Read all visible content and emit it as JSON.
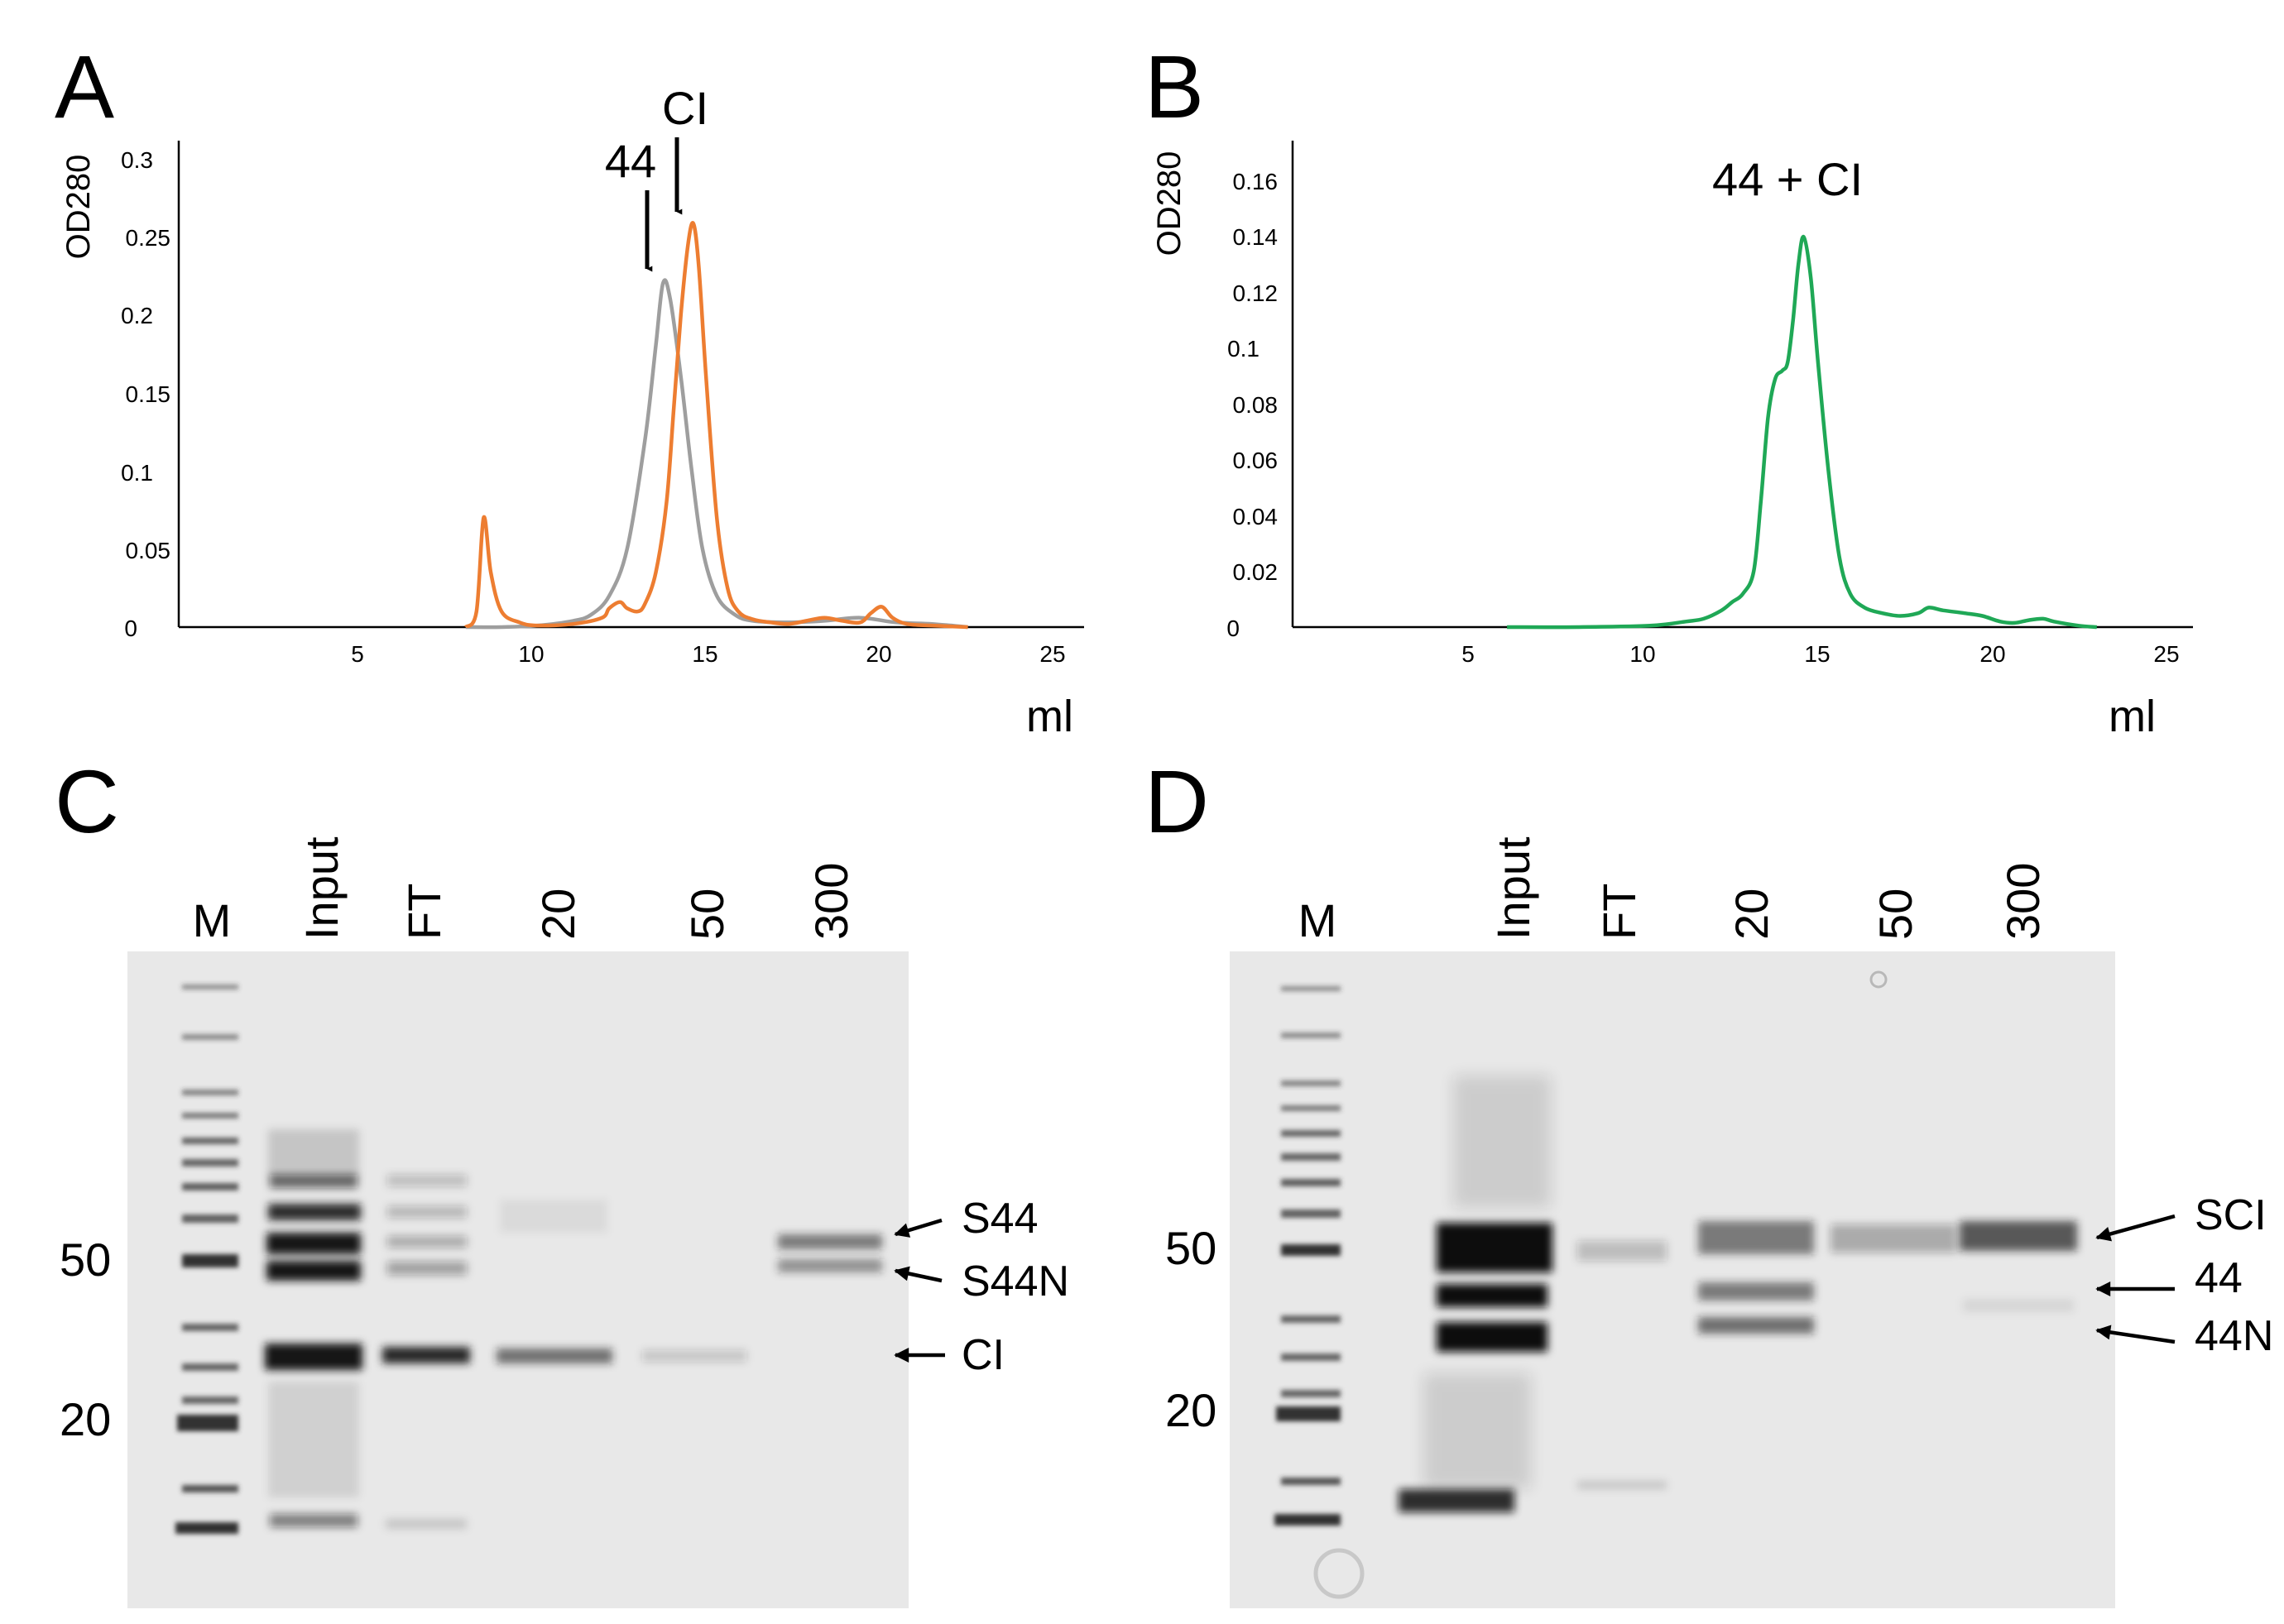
{
  "panels": {
    "A": {
      "letter": "A"
    },
    "B": {
      "letter": "B"
    },
    "C": {
      "letter": "C"
    },
    "D": {
      "letter": "D"
    }
  },
  "chart_data": [
    {
      "panel": "A",
      "type": "line",
      "xlabel": "ml",
      "ylabel": "OD280",
      "xlim": [
        0,
        25.7
      ],
      "ylim": [
        0,
        0.3
      ],
      "xticks": [
        "5",
        "10",
        "15",
        "20",
        "25"
      ],
      "yticks": [
        "0",
        "0.05",
        "0.1",
        "0.15",
        "0.2",
        "0.25",
        "0.3"
      ],
      "annotations": [
        {
          "text": "44",
          "x": 13.5
        },
        {
          "text": "CI",
          "x": 14.3
        }
      ],
      "series": [
        {
          "color": "#9e9e9e",
          "x": [
            8,
            9,
            10,
            11,
            11.5,
            12,
            12.5,
            13,
            13.3,
            13.5,
            13.7,
            14,
            14.3,
            14.6,
            15,
            15.5,
            16,
            17,
            18,
            19,
            20,
            21,
            22
          ],
          "y": [
            0,
            0,
            0.001,
            0.004,
            0.008,
            0.02,
            0.05,
            0.12,
            0.18,
            0.22,
            0.21,
            0.16,
            0.1,
            0.05,
            0.02,
            0.008,
            0.004,
            0.003,
            0.004,
            0.006,
            0.003,
            0.002,
            0
          ]
        },
        {
          "color": "#ed7d31",
          "x": [
            8,
            8.3,
            8.5,
            8.7,
            9,
            9.5,
            10,
            11,
            11.8,
            12,
            12.3,
            12.5,
            12.8,
            13,
            13.3,
            13.6,
            13.8,
            14,
            14.2,
            14.35,
            14.5,
            14.7,
            15,
            15.3,
            15.6,
            16,
            16.5,
            17,
            17.5,
            18,
            18.5,
            19,
            19.3,
            19.6,
            19.9,
            20.3,
            21,
            22
          ],
          "y": [
            0,
            0.01,
            0.07,
            0.035,
            0.01,
            0.003,
            0.001,
            0.002,
            0.006,
            0.012,
            0.016,
            0.012,
            0.01,
            0.015,
            0.035,
            0.08,
            0.14,
            0.2,
            0.245,
            0.258,
            0.23,
            0.16,
            0.07,
            0.025,
            0.01,
            0.005,
            0.003,
            0.002,
            0.004,
            0.006,
            0.004,
            0.003,
            0.009,
            0.013,
            0.006,
            0.002,
            0.001,
            0
          ]
        }
      ]
    },
    {
      "panel": "B",
      "type": "line",
      "xlabel": "ml",
      "ylabel": "OD280",
      "xlim": [
        0,
        25.7
      ],
      "ylim": [
        0,
        0.16
      ],
      "xticks": [
        "5",
        "10",
        "15",
        "20",
        "25"
      ],
      "yticks": [
        "0",
        "0.02",
        "0.04",
        "0.06",
        "0.08",
        "0.1",
        "0.12",
        "0.14",
        "0.16"
      ],
      "annotations": [
        {
          "text": "44 + CI",
          "x": 14.2
        }
      ],
      "series": [
        {
          "color": "#1fa856",
          "x": [
            6,
            8,
            10,
            11,
            11.5,
            12,
            12.3,
            12.6,
            12.9,
            13.1,
            13.3,
            13.5,
            13.7,
            13.85,
            14,
            14.15,
            14.3,
            14.5,
            14.7,
            15,
            15.3,
            15.6,
            16,
            16.5,
            17,
            17.5,
            17.8,
            18.2,
            18.8,
            19.3,
            19.8,
            20.2,
            20.6,
            21,
            21.3,
            22,
            22.5
          ],
          "y": [
            0,
            0,
            0.0005,
            0.002,
            0.003,
            0.006,
            0.009,
            0.012,
            0.02,
            0.045,
            0.075,
            0.089,
            0.092,
            0.095,
            0.11,
            0.13,
            0.14,
            0.125,
            0.095,
            0.055,
            0.025,
            0.012,
            0.007,
            0.005,
            0.004,
            0.005,
            0.007,
            0.006,
            0.005,
            0.004,
            0.002,
            0.0015,
            0.0025,
            0.003,
            0.002,
            0.0005,
            0
          ]
        }
      ]
    }
  ],
  "gels": {
    "C": {
      "lanes": [
        "M",
        "Input",
        "FT",
        "20",
        "50",
        "300"
      ],
      "mw_markers": [
        "50",
        "20"
      ],
      "band_labels": [
        "S44",
        "S44N",
        "CI"
      ]
    },
    "D": {
      "lanes": [
        "M",
        "Input",
        "FT",
        "20",
        "50",
        "300"
      ],
      "mw_markers": [
        "50",
        "20"
      ],
      "band_labels": [
        "SCI",
        "44",
        "44N"
      ]
    }
  }
}
